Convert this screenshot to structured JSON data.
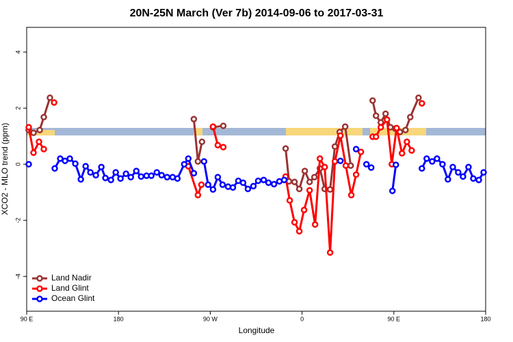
{
  "chart_data": {
    "type": "line",
    "title": "20N-25N March (Ver 7b)   2014-09-06 to 2017-03-31",
    "x_label": "Longitude",
    "y_label": "XCO2 - MLO trend (ppm)",
    "xlim": [
      90,
      540
    ],
    "ylim": [
      -5.24,
      4.88
    ],
    "xticks": [
      {
        "value": 90,
        "label": "90 E"
      },
      180,
      {
        "value": 270,
        "label": "90 W"
      },
      {
        "value": 360,
        "label": "0"
      },
      {
        "value": 450,
        "label": "90 E"
      },
      {
        "value": 540,
        "label": "180"
      }
    ],
    "yticks": [
      -4,
      -2,
      0,
      2,
      4
    ],
    "legend": "bottom-left",
    "series": [
      {
        "name": "Land Nadir",
        "color": "#993333",
        "x": [
          92,
          96.7,
          102.8,
          106.8,
          112.8,
          null,
          253.9,
          257.9,
          261.9,
          null,
          272.7,
          282.8,
          null,
          343.9,
          347.2,
          352.6,
          357.3,
          362.7,
          367.4,
          372.1,
          377.5,
          382.2,
          387.5,
          392.2,
          396.9,
          402.3,
          407.7,
          null,
          429.2,
          432.5,
          437.2,
          441.9,
          446.6,
          451.3,
          456.0,
          461.4,
          466.1,
          474.2
        ],
        "values": [
          1.22,
          1.12,
          1.22,
          1.68,
          2.37,
          null,
          1.61,
          0.1,
          0.8,
          null,
          1.32,
          1.37,
          null,
          0.56,
          -0.61,
          -0.63,
          -0.88,
          -0.24,
          -0.63,
          -0.46,
          -0.15,
          -0.88,
          -0.9,
          0.63,
          1.15,
          1.34,
          -0.05,
          null,
          2.27,
          1.73,
          1.49,
          1.8,
          1.32,
          1.27,
          1.15,
          1.22,
          1.68,
          2.37
        ]
      },
      {
        "name": "Land Glint",
        "color": "#ff0000",
        "x": [
          92,
          96.7,
          102.1,
          106.8,
          null,
          116.9,
          null,
          248.5,
          257.9,
          261.3,
          null,
          272.7,
          277.4,
          282.8,
          null,
          343.9,
          347.9,
          352.6,
          357.3,
          362.0,
          367.4,
          372.8,
          377.5,
          382.2,
          387.5,
          392.2,
          397.6,
          402.9,
          408.3,
          413.0,
          417.7,
          null,
          429.2,
          432.5,
          437.2,
          443.3,
          448.0,
          452.7,
          458.0,
          462.8,
          467.5,
          null,
          477.5
        ],
        "values": [
          1.32,
          0.41,
          0.8,
          0.54,
          null,
          2.2,
          null,
          -0.07,
          -1.1,
          -0.73,
          null,
          1.34,
          0.68,
          0.61,
          null,
          -0.44,
          -1.29,
          -2.07,
          -2.39,
          -1.63,
          -0.93,
          -2.15,
          0.2,
          -0.1,
          -3.15,
          0.1,
          1.02,
          -0.05,
          -1.1,
          -0.37,
          0.44,
          null,
          0.98,
          0.98,
          1.32,
          1.59,
          0.0,
          1.29,
          0.39,
          0.8,
          0.49,
          null,
          2.17
        ]
      },
      {
        "name": "Ocean Glint",
        "color": "#0000ff",
        "x": [
          92,
          null,
          117.5,
          122.9,
          127.6,
          132.3,
          137.7,
          143.1,
          147.8,
          152.5,
          157.8,
          163.2,
          167.2,
          172.6,
          177.3,
          182.0,
          187.4,
          192.1,
          197.5,
          202.2,
          207.5,
          212.2,
          217.6,
          222.3,
          227.7,
          233.1,
          237.8,
          244.5,
          248.5,
          253.9,
          null,
          263.9,
          267.9,
          272.7,
          277.4,
          282.1,
          287.5,
          292.2,
          297.5,
          302.2,
          306.9,
          312.3,
          317.0,
          322.4,
          327.1,
          332.5,
          337.8,
          342.5,
          null,
          397.6,
          null,
          413.0,
          null,
          423.1,
          427.8,
          null,
          448.6,
          452.0,
          null,
          477.5,
          482.2,
          487.6,
          492.3,
          497.7,
          503.0,
          507.8,
          513.1,
          517.8,
          523.2,
          527.9,
          533.3,
          538.0
        ],
        "values": [
          0.0,
          null,
          -0.15,
          0.2,
          0.12,
          0.2,
          0.02,
          -0.54,
          -0.07,
          -0.29,
          -0.39,
          -0.1,
          -0.49,
          -0.56,
          -0.29,
          -0.51,
          -0.34,
          -0.46,
          -0.24,
          -0.44,
          -0.41,
          -0.41,
          -0.29,
          -0.39,
          -0.46,
          -0.46,
          -0.51,
          0.0,
          0.2,
          -0.32,
          null,
          0.1,
          -0.73,
          -0.9,
          -0.46,
          -0.73,
          -0.8,
          -0.83,
          -0.59,
          -0.66,
          -0.88,
          -0.78,
          -0.59,
          -0.56,
          -0.66,
          -0.71,
          -0.61,
          -0.56,
          null,
          0.12,
          null,
          0.54,
          null,
          0.0,
          -0.12,
          null,
          -0.95,
          -0.02,
          null,
          -0.15,
          0.2,
          0.1,
          0.2,
          0.0,
          -0.54,
          -0.1,
          -0.29,
          -0.44,
          -0.1,
          -0.51,
          -0.56,
          -0.29
        ]
      }
    ]
  }
}
